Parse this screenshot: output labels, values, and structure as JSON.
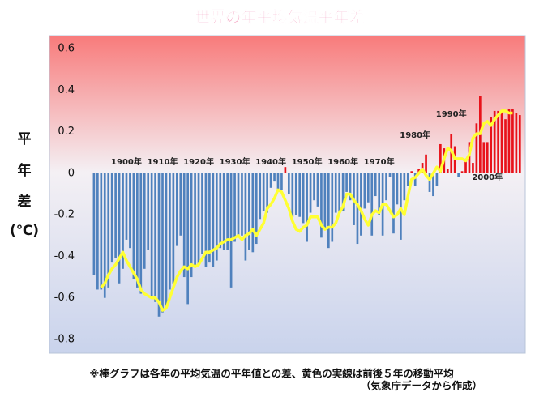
{
  "chart_data": {
    "type": "bar_line",
    "title": "世界の年平均気温平年差",
    "ylabel_lines": [
      "平",
      "年",
      "差",
      "(℃)"
    ],
    "notes": [
      "※棒グラフは各年の平均気温の平年値との差、黄色の実線は前後５年の移動平均",
      "（気象庁データから作成）"
    ],
    "xlim": [
      1889,
      2010.5
    ],
    "xticks": [
      {
        "value": 1900,
        "label": "1900年"
      },
      {
        "value": 1910,
        "label": "1910年"
      },
      {
        "value": 1920,
        "label": "1920年"
      },
      {
        "value": 1930,
        "label": "1930年"
      },
      {
        "value": 1940,
        "label": "1940年"
      },
      {
        "value": 1950,
        "label": "1950年"
      },
      {
        "value": 1960,
        "label": "1960年"
      },
      {
        "value": 1970,
        "label": "1970年"
      },
      {
        "value": 1980,
        "label": "1980年"
      },
      {
        "value": 1990,
        "label": "1990年"
      },
      {
        "value": 2000,
        "label": "2000年"
      }
    ],
    "ylim": [
      -0.8,
      0.6
    ],
    "yticks": [
      0.6,
      0.4,
      0.2,
      0,
      -0.2,
      -0.4,
      -0.6,
      -0.8
    ],
    "x": [
      1891,
      1892,
      1893,
      1894,
      1895,
      1896,
      1897,
      1898,
      1899,
      1900,
      1901,
      1902,
      1903,
      1904,
      1905,
      1906,
      1907,
      1908,
      1909,
      1910,
      1911,
      1912,
      1913,
      1914,
      1915,
      1916,
      1917,
      1918,
      1919,
      1920,
      1921,
      1922,
      1923,
      1924,
      1925,
      1926,
      1927,
      1928,
      1929,
      1930,
      1931,
      1932,
      1933,
      1934,
      1935,
      1936,
      1937,
      1938,
      1939,
      1940,
      1941,
      1942,
      1943,
      1944,
      1945,
      1946,
      1947,
      1948,
      1949,
      1950,
      1951,
      1952,
      1953,
      1954,
      1955,
      1956,
      1957,
      1958,
      1959,
      1960,
      1961,
      1962,
      1963,
      1964,
      1965,
      1966,
      1967,
      1968,
      1969,
      1970,
      1971,
      1972,
      1973,
      1974,
      1975,
      1976,
      1977,
      1978,
      1979,
      1980,
      1981,
      1982,
      1983,
      1984,
      1985,
      1986,
      1987,
      1988,
      1989,
      1990,
      1991,
      1992,
      1993,
      1994,
      1995,
      1996,
      1997,
      1998,
      1999,
      2000,
      2001,
      2002,
      2003,
      2004,
      2005,
      2006,
      2007,
      2008,
      2009
    ],
    "series": [
      {
        "type": "bar",
        "positive_color": "#e8121a",
        "negative_color": "#4f81bd",
        "values": [
          -0.49,
          -0.56,
          -0.56,
          -0.6,
          -0.55,
          -0.43,
          -0.41,
          -0.53,
          -0.46,
          -0.32,
          -0.36,
          -0.51,
          -0.55,
          -0.58,
          -0.46,
          -0.37,
          -0.6,
          -0.62,
          -0.69,
          -0.67,
          -0.64,
          -0.56,
          -0.53,
          -0.35,
          -0.3,
          -0.5,
          -0.63,
          -0.5,
          -0.45,
          -0.44,
          -0.39,
          -0.45,
          -0.43,
          -0.45,
          -0.42,
          -0.36,
          -0.37,
          -0.37,
          -0.55,
          -0.33,
          -0.3,
          -0.3,
          -0.42,
          -0.37,
          -0.38,
          -0.34,
          -0.22,
          -0.18,
          -0.19,
          -0.07,
          -0.04,
          -0.08,
          -0.08,
          0.03,
          -0.1,
          -0.21,
          -0.2,
          -0.21,
          -0.24,
          -0.33,
          -0.19,
          -0.13,
          -0.16,
          -0.31,
          -0.27,
          -0.36,
          -0.33,
          -0.19,
          -0.2,
          -0.18,
          -0.09,
          -0.13,
          -0.25,
          -0.34,
          -0.3,
          -0.17,
          -0.14,
          -0.3,
          -0.11,
          -0.2,
          -0.3,
          -0.13,
          -0.02,
          -0.29,
          -0.15,
          -0.32,
          -0.13,
          -0.06,
          0.01,
          -0.06,
          0.02,
          0.05,
          0.09,
          -0.09,
          -0.11,
          -0.06,
          0.14,
          0.12,
          0.02,
          0.19,
          0.13,
          -0.02,
          0.01,
          0.07,
          0.15,
          0.05,
          0.24,
          0.37,
          0.15,
          0.15,
          0.27,
          0.3,
          0.3,
          0.3,
          0.26,
          0.31,
          0.31,
          0.29,
          0.28
        ]
      },
      {
        "type": "line",
        "color": "#ffff33",
        "values": [
          null,
          null,
          -0.55,
          -0.53,
          -0.49,
          -0.46,
          -0.44,
          -0.41,
          -0.38,
          -0.42,
          -0.45,
          -0.48,
          -0.51,
          -0.56,
          -0.58,
          -0.59,
          -0.6,
          -0.6,
          -0.62,
          -0.66,
          -0.65,
          -0.6,
          -0.55,
          -0.5,
          -0.47,
          -0.45,
          -0.46,
          -0.44,
          -0.45,
          -0.44,
          -0.41,
          -0.38,
          -0.38,
          -0.37,
          -0.36,
          -0.34,
          -0.33,
          -0.32,
          -0.32,
          -0.31,
          -0.3,
          -0.32,
          -0.3,
          -0.29,
          -0.27,
          -0.3,
          -0.27,
          -0.24,
          -0.17,
          -0.15,
          -0.12,
          -0.08,
          -0.09,
          -0.13,
          -0.17,
          -0.23,
          -0.27,
          -0.28,
          -0.26,
          -0.25,
          -0.21,
          -0.21,
          -0.21,
          -0.25,
          -0.27,
          -0.26,
          -0.26,
          -0.24,
          -0.19,
          -0.16,
          -0.1,
          -0.1,
          -0.13,
          -0.15,
          -0.18,
          -0.22,
          -0.25,
          -0.2,
          -0.18,
          -0.19,
          -0.15,
          -0.15,
          -0.18,
          -0.21,
          -0.2,
          -0.17,
          -0.2,
          -0.11,
          -0.03,
          -0.02,
          0,
          0.02,
          -0.01,
          -0.03,
          0,
          0.03,
          0.01,
          0.07,
          0.12,
          0.11,
          0.07,
          0.07,
          0.07,
          0.06,
          0.09,
          0.17,
          0.19,
          0.19,
          0.24,
          0.25,
          0.23,
          0.26,
          0.28,
          0.3,
          0.3,
          0.29,
          0.29,
          null,
          null
        ]
      }
    ]
  }
}
